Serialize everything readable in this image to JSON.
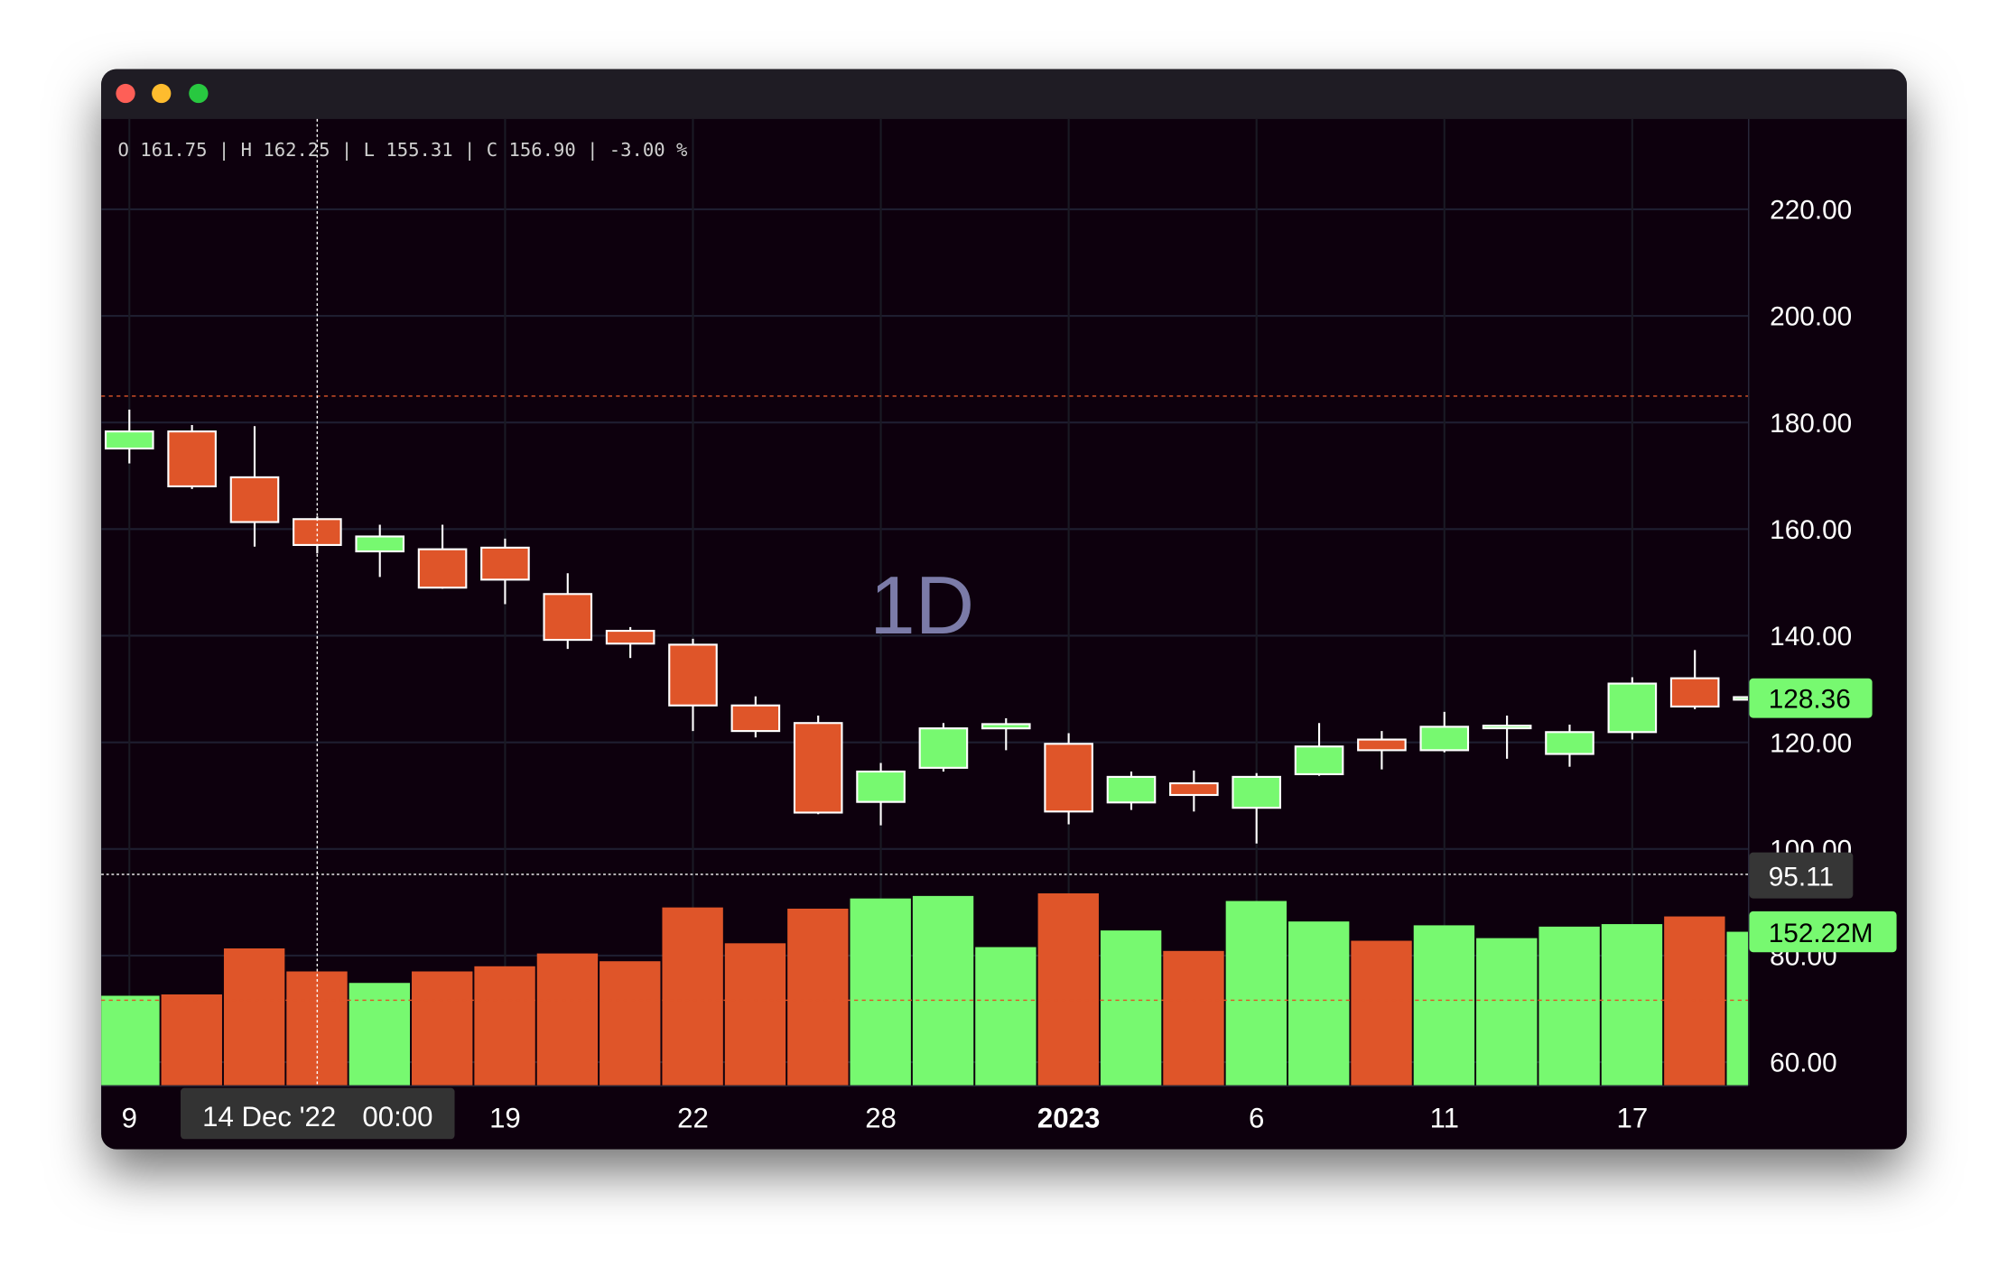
{
  "window": {
    "traffic_lights": [
      "close",
      "minimize",
      "zoom"
    ]
  },
  "chart_data": {
    "type": "candlestick",
    "watermark": "1D",
    "legend_text": "O 161.75 | H 162.25 | L 155.31 | C 156.90 | -3.00 %",
    "dates": [
      "2022-12-09",
      "2022-12-12",
      "2022-12-13",
      "2022-12-14",
      "2022-12-15",
      "2022-12-16",
      "2022-12-19",
      "2022-12-20",
      "2022-12-21",
      "2022-12-22",
      "2022-12-23",
      "2022-12-27",
      "2022-12-28",
      "2022-12-29",
      "2022-12-30",
      "2023-01-03",
      "2023-01-04",
      "2023-01-05",
      "2023-01-06",
      "2023-01-09",
      "2023-01-10",
      "2023-01-11",
      "2023-01-12",
      "2023-01-13",
      "2023-01-17",
      "2023-01-18",
      "2023-01-19"
    ],
    "ohlc": [
      [
        175.0,
        182.3,
        172.2,
        178.2
      ],
      [
        178.2,
        179.4,
        167.4,
        167.9
      ],
      [
        169.6,
        179.2,
        156.6,
        161.2
      ],
      [
        161.75,
        162.25,
        155.31,
        156.9
      ],
      [
        155.7,
        160.7,
        150.9,
        158.5
      ],
      [
        156.1,
        160.7,
        148.7,
        148.9
      ],
      [
        156.4,
        158.1,
        145.8,
        150.4
      ],
      [
        147.7,
        151.6,
        137.4,
        139.1
      ],
      [
        140.8,
        141.5,
        135.7,
        138.4
      ],
      [
        138.2,
        139.3,
        122.0,
        126.8
      ],
      [
        126.8,
        128.5,
        120.8,
        122.0
      ],
      [
        123.5,
        124.9,
        106.4,
        106.7
      ],
      [
        108.7,
        116.0,
        104.3,
        114.4
      ],
      [
        115.1,
        123.5,
        114.4,
        122.5
      ],
      [
        122.5,
        124.4,
        118.4,
        123.3
      ],
      [
        119.6,
        121.6,
        104.5,
        106.9
      ],
      [
        108.6,
        114.4,
        107.2,
        113.4
      ],
      [
        112.2,
        114.6,
        106.9,
        110.0
      ],
      [
        107.6,
        114.1,
        100.9,
        113.4
      ],
      [
        113.9,
        123.5,
        113.6,
        119.1
      ],
      [
        120.4,
        122.0,
        114.8,
        118.4
      ],
      [
        118.4,
        125.6,
        118.0,
        122.8
      ],
      [
        122.8,
        124.9,
        116.8,
        123.0
      ],
      [
        117.7,
        123.2,
        115.3,
        121.8
      ],
      [
        121.8,
        132.1,
        120.4,
        130.9
      ],
      [
        131.9,
        137.2,
        126.1,
        126.6
      ],
      [
        128.0,
        128.8,
        127.6,
        128.36
      ]
    ],
    "volume": [
      88.8,
      90.1,
      135.7,
      112.9,
      101.5,
      112.9,
      118.0,
      130.7,
      123.0,
      176.3,
      140.8,
      175.1,
      185.2,
      187.7,
      137.0,
      190.3,
      153.5,
      133.2,
      182.7,
      162.4,
      143.3,
      158.6,
      145.9,
      157.3,
      159.8,
      167.4,
      152.22
    ],
    "volume_unit": "M",
    "y_ticks": [
      {
        "value": 220,
        "label": "220.00"
      },
      {
        "value": 200,
        "label": "200.00"
      },
      {
        "value": 180,
        "label": "180.00"
      },
      {
        "value": 160,
        "label": "160.00"
      },
      {
        "value": 140,
        "label": "140.00"
      },
      {
        "value": 120,
        "label": "120.00"
      },
      {
        "value": 100,
        "label": "100.00"
      },
      {
        "value": 80,
        "label": "80.00"
      },
      {
        "value": 60,
        "label": "60.00"
      }
    ],
    "x_ticks": [
      {
        "index": 0,
        "label": "9",
        "bold": false
      },
      {
        "index": 6,
        "label": "19",
        "bold": false
      },
      {
        "index": 9,
        "label": "22",
        "bold": false
      },
      {
        "index": 12,
        "label": "28",
        "bold": false
      },
      {
        "index": 15,
        "label": "2023",
        "bold": true
      },
      {
        "index": 18,
        "label": "6",
        "bold": false
      },
      {
        "index": 21,
        "label": "11",
        "bold": false
      },
      {
        "index": 24,
        "label": "17",
        "bold": false
      }
    ],
    "crosshair": {
      "index": 3,
      "date_label": "14 Dec '22",
      "time_label": "00:00",
      "price": 95.11,
      "price_label": "95.11"
    },
    "last_price_label": "128.36",
    "last_volume_label": "152.22M",
    "grid": true,
    "colors": {
      "up": "#77f970",
      "down": "#df5529",
      "wick": "#ffffff",
      "background": "#070309",
      "grid": "#1e1e30",
      "watermark": "#7b7ba8"
    }
  }
}
